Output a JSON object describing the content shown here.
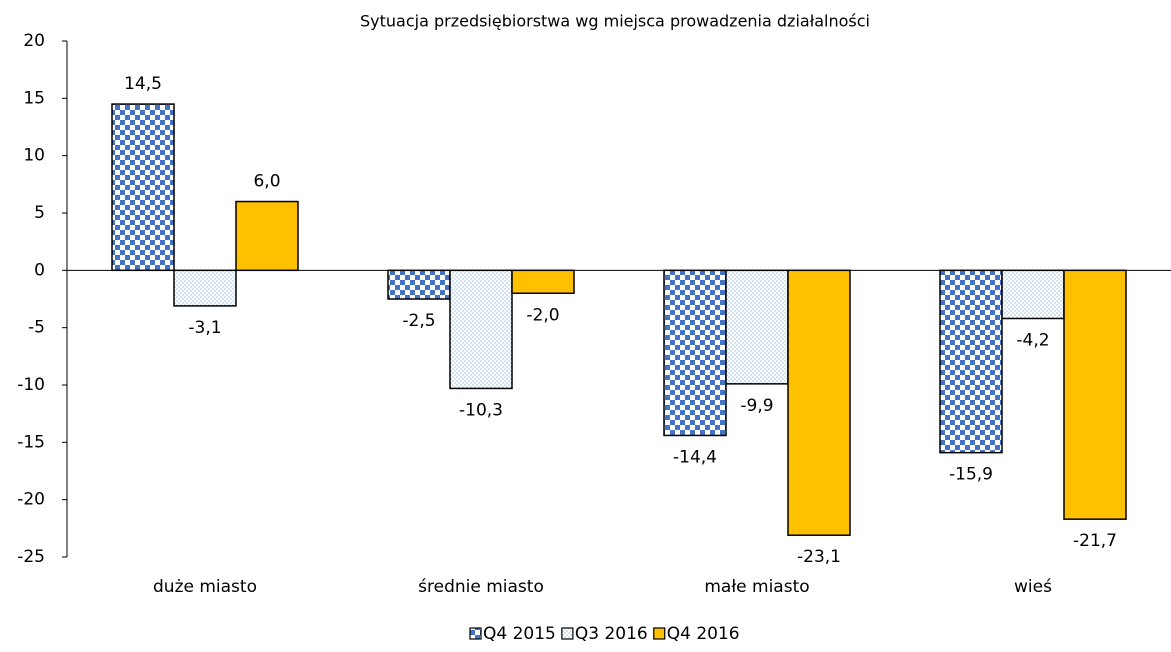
{
  "chart_data": {
    "type": "bar",
    "title": "Sytuacja przedsiębiorstwa wg miejsca prowadzenia działalności",
    "categories": [
      "duże miasto",
      "średnie miasto",
      "małe miasto",
      "wieś"
    ],
    "series": [
      {
        "name": "Q4 2015",
        "color": "#4472c4",
        "values": [
          14.5,
          -2.5,
          -14.4,
          -15.9
        ],
        "value_labels": [
          "14,5",
          "-2,5",
          "-14,4",
          "-15,9"
        ]
      },
      {
        "name": "Q3 2016",
        "color": "#9dc3e6",
        "values": [
          -3.1,
          -10.3,
          -9.9,
          -4.2
        ],
        "value_labels": [
          "-3,1",
          "-10,3",
          "-9,9",
          "-4,2"
        ]
      },
      {
        "name": "Q4 2016",
        "color": "#ffc000",
        "values": [
          6.0,
          -2.0,
          -23.1,
          -21.7
        ],
        "value_labels": [
          "6,0",
          "-2,0",
          "-23,1",
          "-21,7"
        ]
      }
    ],
    "ylim": [
      -25,
      20
    ],
    "yticks": [
      -25,
      -20,
      -15,
      -10,
      -5,
      0,
      5,
      10,
      15,
      20
    ],
    "grid": false
  }
}
